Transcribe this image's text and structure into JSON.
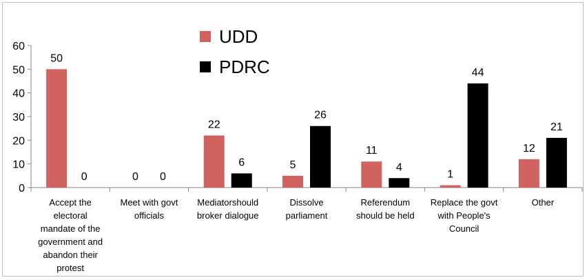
{
  "chart_data": {
    "type": "bar",
    "title": "",
    "xlabel": "",
    "ylabel": "",
    "ylim": [
      0,
      60
    ],
    "yticks": [
      0,
      10,
      20,
      30,
      40,
      50,
      60
    ],
    "grid": false,
    "legend_position": "top-center",
    "categories": [
      [
        "Accept the",
        "electoral",
        "mandate of the",
        "government and",
        "abandon their",
        "protest"
      ],
      [
        "Meet with govt",
        "officials"
      ],
      [
        "Mediatorshould",
        "broker dialogue"
      ],
      [
        "Dissolve",
        "parliament"
      ],
      [
        "Referendum",
        "should be held"
      ],
      [
        "Replace the govt",
        "with People's",
        "Council"
      ],
      [
        "Other"
      ]
    ],
    "series": [
      {
        "name": "UDD",
        "color": "#d0625f",
        "values": [
          50,
          0,
          22,
          5,
          11,
          1,
          12
        ]
      },
      {
        "name": "PDRC",
        "color": "#000000",
        "values": [
          0,
          0,
          6,
          26,
          4,
          44,
          21
        ]
      }
    ]
  }
}
